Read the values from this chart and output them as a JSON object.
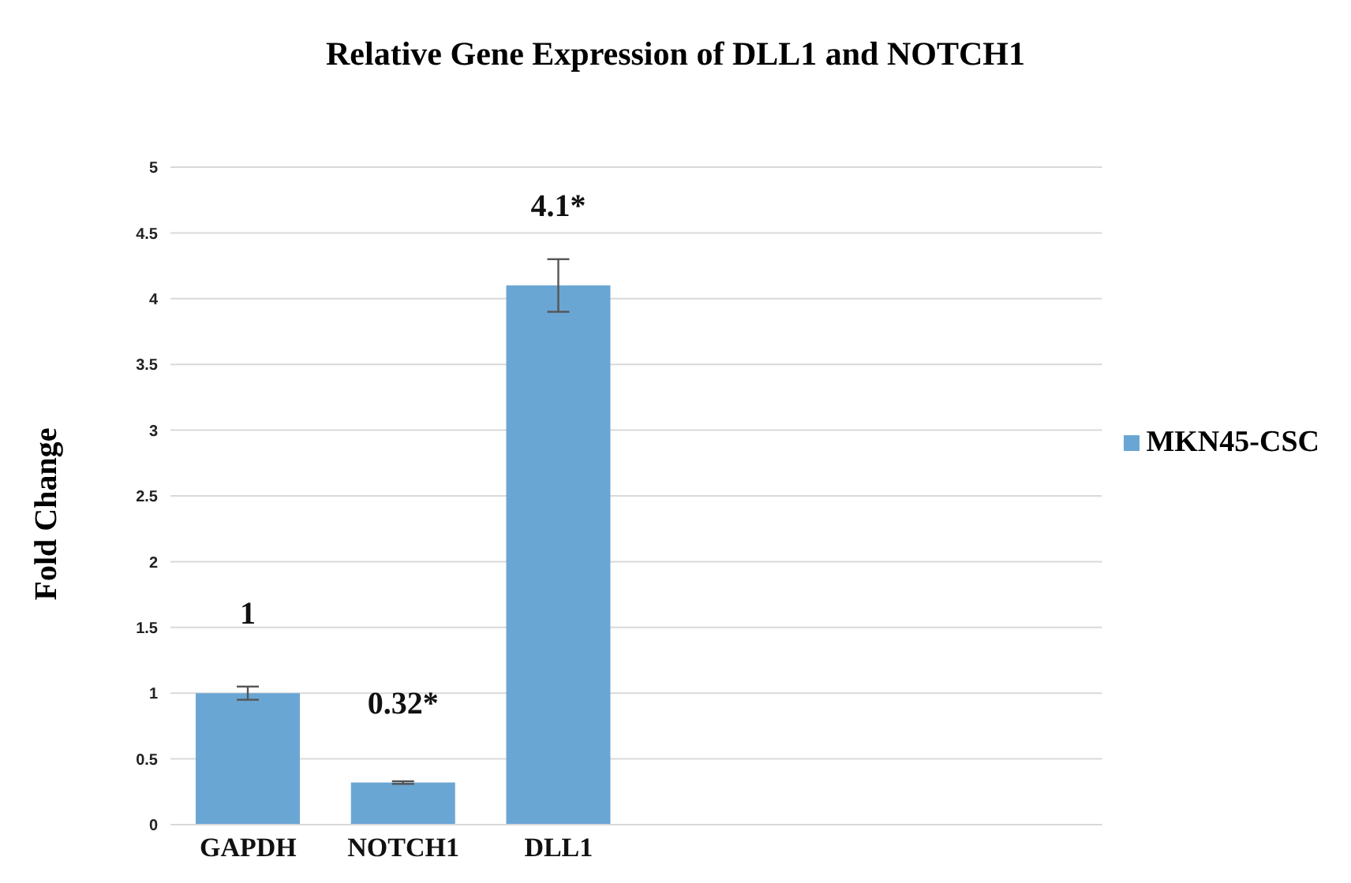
{
  "chart_data": {
    "type": "bar",
    "title": "Relative Gene Expression of DLL1 and NOTCH1",
    "ylabel": "Fold Change",
    "categories": [
      "GAPDH",
      "NOTCH1",
      "DLL1",
      null,
      null,
      null
    ],
    "series": [
      {
        "name": "MKN45-CSC",
        "color": "#6aa6d4",
        "values": [
          1,
          0.32,
          4.1,
          null,
          null,
          null
        ],
        "errors": [
          0.05,
          0.01,
          0.2,
          null,
          null,
          null
        ],
        "value_labels": [
          "1",
          "0.32*",
          "4.1*",
          null,
          null,
          null
        ]
      }
    ],
    "ylim": [
      0,
      5
    ],
    "yticks": [
      0,
      0.5,
      1,
      1.5,
      2,
      2.5,
      3,
      3.5,
      4,
      4.5,
      5
    ],
    "grid": "y",
    "legend": "right"
  }
}
